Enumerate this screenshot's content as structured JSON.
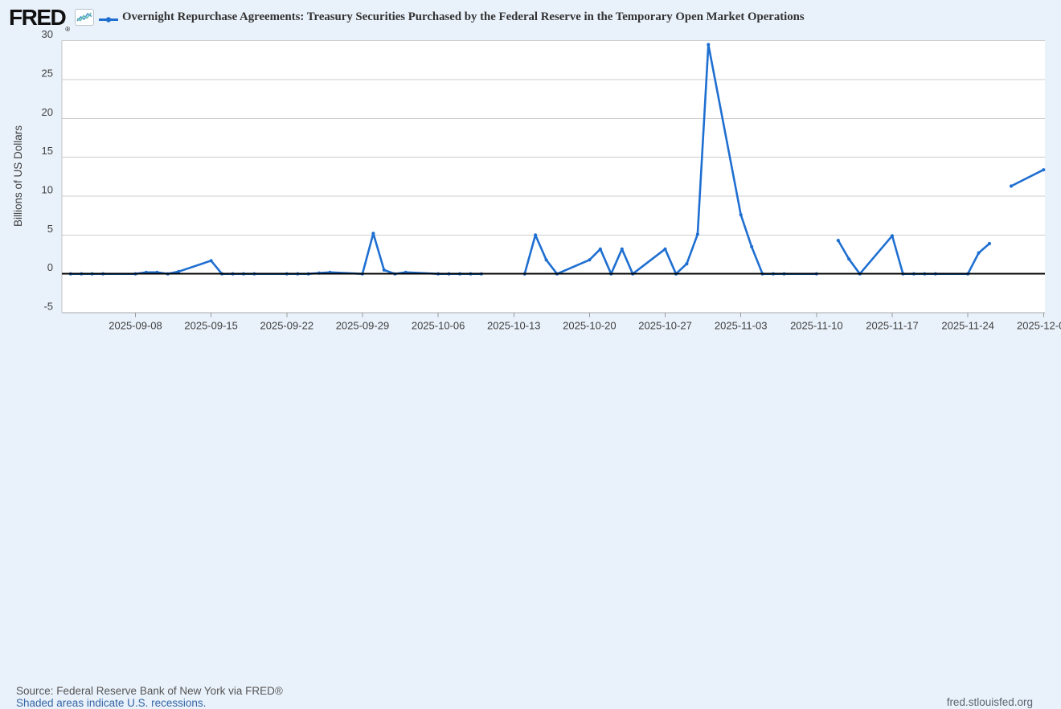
{
  "header": {
    "logo_text": "FRED",
    "logo_registered": "®",
    "series_title": "Overnight Repurchase Agreements: Treasury Securities Purchased by the Federal Reserve in the Temporary Open Market Operations"
  },
  "footer": {
    "source": "Source: Federal Reserve Bank of New York via FRED®",
    "recession_note": "Shaded areas indicate U.S. recessions.",
    "site": "fred.stlouisfed.org"
  },
  "colors": {
    "series_blue": "#1f6fd1",
    "background": "#e9f1fa",
    "plot_background": "#ffffff",
    "gridline": "#cccccc",
    "zero_line": "#000000",
    "axis_text": "#404040",
    "link_blue": "#3465a4"
  },
  "chart_data": {
    "type": "line",
    "title": "Overnight Repurchase Agreements: Treasury Securities Purchased by the Federal Reserve in the Temporary Open Market Operations",
    "xlabel": "",
    "ylabel": "Billions of US Dollars",
    "ylim": [
      -5,
      30
    ],
    "y_ticks": [
      30,
      25,
      20,
      15,
      10,
      5,
      0,
      -5
    ],
    "x_tick_labels": [
      "2025-09-08",
      "2025-09-15",
      "2025-09-22",
      "2025-09-29",
      "2025-10-06",
      "2025-10-13",
      "2025-10-20",
      "2025-10-27",
      "2025-11-03",
      "2025-11-10",
      "2025-11-17",
      "2025-11-24",
      "2025-12-01"
    ],
    "grid": true,
    "legend_position": "top",
    "gap_dates_no_data": [
      "2025-10-13",
      "2025-11-11",
      "2025-11-27"
    ],
    "series": [
      {
        "name": "Overnight Repurchase Agreements: Treasury Securities Purchased by the Federal Reserve in the Temporary Open Market Operations",
        "color": "#1f6fd1",
        "points": [
          [
            "2025-09-02",
            0
          ],
          [
            "2025-09-03",
            0
          ],
          [
            "2025-09-04",
            0
          ],
          [
            "2025-09-05",
            0
          ],
          [
            "2025-09-08",
            0
          ],
          [
            "2025-09-09",
            0.2
          ],
          [
            "2025-09-10",
            0.2
          ],
          [
            "2025-09-11",
            0
          ],
          [
            "2025-09-12",
            0.3
          ],
          [
            "2025-09-15",
            1.7
          ],
          [
            "2025-09-16",
            0
          ],
          [
            "2025-09-17",
            0
          ],
          [
            "2025-09-18",
            0
          ],
          [
            "2025-09-19",
            0
          ],
          [
            "2025-09-22",
            0
          ],
          [
            "2025-09-23",
            0
          ],
          [
            "2025-09-24",
            0
          ],
          [
            "2025-09-25",
            0.1
          ],
          [
            "2025-09-26",
            0.2
          ],
          [
            "2025-09-29",
            0
          ],
          [
            "2025-09-30",
            5.2
          ],
          [
            "2025-10-01",
            0.5
          ],
          [
            "2025-10-02",
            0
          ],
          [
            "2025-10-03",
            0.2
          ],
          [
            "2025-10-06",
            0
          ],
          [
            "2025-10-07",
            0
          ],
          [
            "2025-10-08",
            0
          ],
          [
            "2025-10-09",
            0
          ],
          [
            "2025-10-10",
            0
          ],
          [
            "2025-10-13",
            null
          ],
          [
            "2025-10-14",
            0
          ],
          [
            "2025-10-15",
            5.0
          ],
          [
            "2025-10-16",
            1.8
          ],
          [
            "2025-10-17",
            0
          ],
          [
            "2025-10-20",
            1.8
          ],
          [
            "2025-10-21",
            3.2
          ],
          [
            "2025-10-22",
            0
          ],
          [
            "2025-10-23",
            3.2
          ],
          [
            "2025-10-24",
            0
          ],
          [
            "2025-10-27",
            3.2
          ],
          [
            "2025-10-28",
            0
          ],
          [
            "2025-10-29",
            1.3
          ],
          [
            "2025-10-30",
            5.1
          ],
          [
            "2025-10-31",
            29.5
          ],
          [
            "2025-11-03",
            7.6
          ],
          [
            "2025-11-04",
            3.5
          ],
          [
            "2025-11-05",
            0
          ],
          [
            "2025-11-06",
            0
          ],
          [
            "2025-11-07",
            0
          ],
          [
            "2025-11-10",
            0
          ],
          [
            "2025-11-11",
            null
          ],
          [
            "2025-11-12",
            4.3
          ],
          [
            "2025-11-13",
            1.9
          ],
          [
            "2025-11-14",
            0
          ],
          [
            "2025-11-17",
            4.9
          ],
          [
            "2025-11-18",
            0
          ],
          [
            "2025-11-19",
            0
          ],
          [
            "2025-11-20",
            0
          ],
          [
            "2025-11-21",
            0
          ],
          [
            "2025-11-24",
            0
          ],
          [
            "2025-11-25",
            2.7
          ],
          [
            "2025-11-26",
            3.9
          ],
          [
            "2025-11-27",
            null
          ],
          [
            "2025-11-28",
            11.3
          ],
          [
            "2025-12-01",
            13.4
          ]
        ]
      }
    ]
  }
}
